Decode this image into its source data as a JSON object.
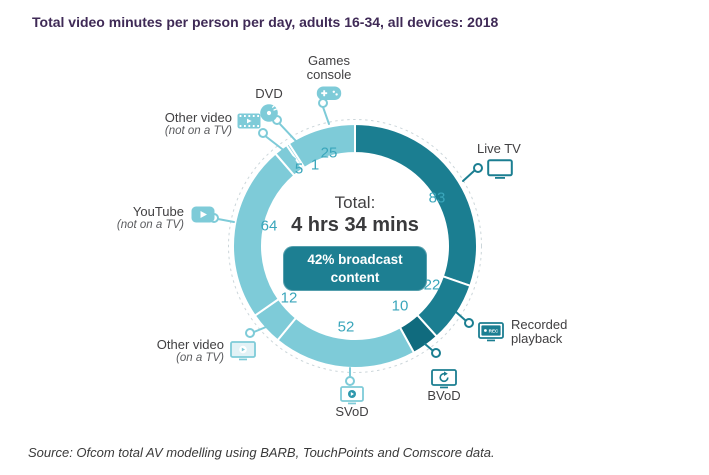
{
  "title": "Total video minutes per person per day, adults 16-34, all devices: 2018",
  "source": "Source: Ofcom total AV modelling using BARB, TouchPoints and Comscore data.",
  "center": {
    "total_label": "Total:",
    "total_value": "4 hrs 34 mins",
    "badge": "42% broadcast content"
  },
  "colors": {
    "title_purple": "#3f2a56",
    "dark_teal": "#1b7e91",
    "bvod_teal": "#106b7e",
    "light_teal": "#7ecbd8",
    "number_teal": "#3aa6bb",
    "badge_teal": "#1d7f92",
    "label_gray": "#414042"
  },
  "chart_data": {
    "type": "pie",
    "variant": "donut",
    "title": "Total video minutes per person per day, adults 16-34, all devices: 2018",
    "units": "minutes per person per day",
    "total": 274,
    "start_angle_deg": 0,
    "direction": "clockwise",
    "center_text": [
      "Total:",
      "4 hrs 34 mins",
      "42% broadcast content"
    ],
    "segments": [
      {
        "label": "Live TV",
        "sublabel": "",
        "value": 83,
        "color": "#1b7e91",
        "icon": "tv-icon"
      },
      {
        "label": "Recorded playback",
        "sublabel": "",
        "value": 22,
        "color": "#1b7e91",
        "icon": "tv-rec-icon"
      },
      {
        "label": "BVoD",
        "sublabel": "",
        "value": 10,
        "color": "#106b7e",
        "icon": "tv-replay-icon"
      },
      {
        "label": "SVoD",
        "sublabel": "",
        "value": 52,
        "color": "#7ecbd8",
        "icon": "tv-play-icon"
      },
      {
        "label": "Other video",
        "sublabel": "(on a TV)",
        "value": 12,
        "color": "#7ecbd8",
        "icon": "tv-video-icon"
      },
      {
        "label": "YouTube",
        "sublabel": "(not on a TV)",
        "value": 64,
        "color": "#7ecbd8",
        "icon": "youtube-icon"
      },
      {
        "label": "Other video",
        "sublabel": "(not on a TV)",
        "value": 5,
        "color": "#7ecbd8",
        "icon": "film-icon"
      },
      {
        "label": "DVD",
        "sublabel": "",
        "value": 1,
        "color": "#7ecbd8",
        "icon": "dvd-icon"
      },
      {
        "label": "Games console",
        "sublabel": "",
        "value": 25,
        "color": "#7ecbd8",
        "icon": "gamepad-icon"
      }
    ]
  }
}
